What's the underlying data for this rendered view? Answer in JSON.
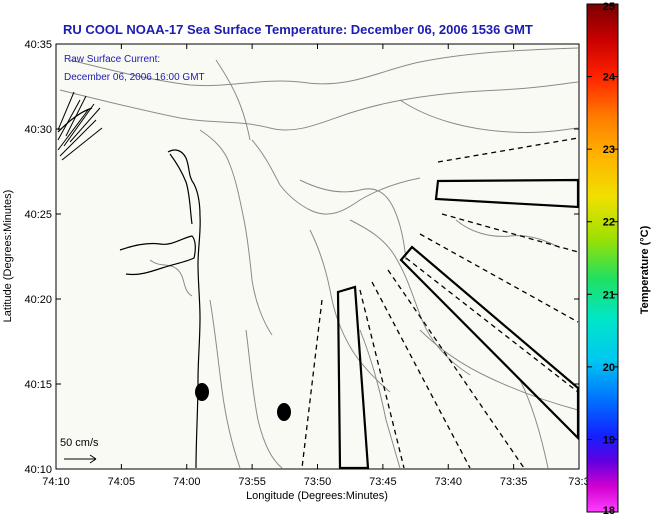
{
  "title": "RU COOL  NOAA-17  Sea Surface Temperature:  December 06, 2006 1536 GMT",
  "annotation": {
    "line1": "Raw Surface Current:",
    "line2": "December 06, 2006 16:00 GMT"
  },
  "scale": {
    "label": "50 cm/s"
  },
  "axes": {
    "xlabel": "Longitude (Degrees:Minutes)",
    "ylabel": "Latitude (Degrees:Minutes)",
    "x_ticks": [
      "74:10",
      "74:05",
      "74:00",
      "73:55",
      "73:50",
      "73:45",
      "73:40",
      "73:35",
      "73:3"
    ],
    "y_ticks": [
      "40:35",
      "40:30",
      "40:25",
      "40:20",
      "40:15",
      "40:10"
    ]
  },
  "colorbar": {
    "label": "Temperature (°C)",
    "ticks": [
      "25",
      "24",
      "23",
      "22",
      "21",
      "20",
      "19",
      "18"
    ],
    "min": 18,
    "max": 25
  },
  "colors": {
    "title": "#1c1cb4",
    "land": "#fafaf5",
    "bathymetry": "#8a8a8a",
    "coast": "#000000"
  },
  "map_features": {
    "bathymetry_contours": "gray",
    "coastline": "black",
    "disposal_areas": "black outlined polygons",
    "radar_coverage_lines": "dashed black"
  }
}
